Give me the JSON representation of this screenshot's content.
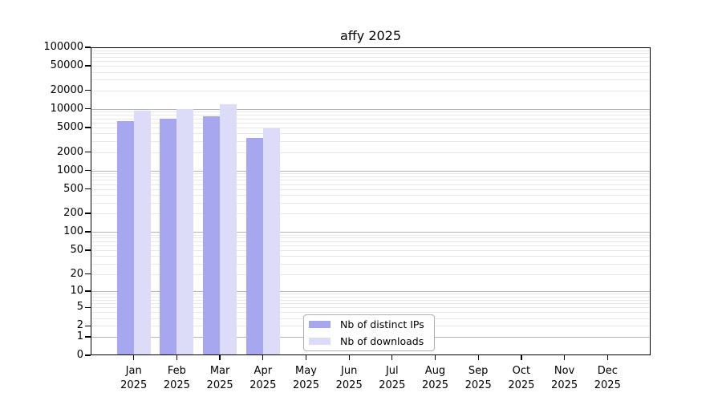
{
  "chart_data": {
    "type": "bar",
    "title": "affy 2025",
    "categories": [
      "Jan 2025",
      "Feb 2025",
      "Mar 2025",
      "Apr 2025",
      "May 2025",
      "Jun 2025",
      "Jul 2025",
      "Aug 2025",
      "Sep 2025",
      "Oct 2025",
      "Nov 2025",
      "Dec 2025"
    ],
    "series": [
      {
        "name": "Nb of distinct IPs",
        "color": "#a7a7f0",
        "values": [
          6400,
          7000,
          7700,
          3400,
          null,
          null,
          null,
          null,
          null,
          null,
          null,
          null
        ]
      },
      {
        "name": "Nb of downloads",
        "color": "#dcdcf9",
        "values": [
          9300,
          10000,
          12000,
          4800,
          null,
          null,
          null,
          null,
          null,
          null,
          null,
          null
        ]
      }
    ],
    "y_ticks": [
      0,
      1,
      2,
      5,
      10,
      20,
      50,
      100,
      200,
      500,
      1000,
      2000,
      5000,
      10000,
      20000,
      50000,
      100000
    ],
    "y_scale": "log10(1+x)",
    "ylim": [
      0,
      100000
    ],
    "grid": "horizontal log minor+major",
    "legend_position": "lower-center"
  },
  "colors": {
    "background": "#ffffff",
    "frame": "#000000",
    "grid_major": "#b4b4b4",
    "grid_minor": "#e8e8e8",
    "bar_ips": "#a7a7f0",
    "bar_downloads": "#dcdcf9"
  }
}
